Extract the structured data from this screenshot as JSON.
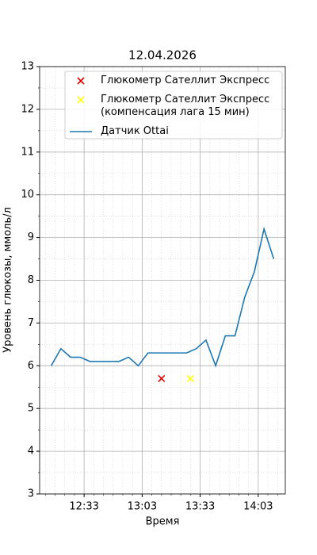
{
  "chart_data": {
    "type": "line",
    "title": "12.04.2026",
    "xlabel": "Время",
    "ylabel": "Уровень глюкозы, ммоль/л",
    "xlim": [
      "12:10",
      "14:17"
    ],
    "xticks": [
      "12:33",
      "13:03",
      "13:33",
      "14:03"
    ],
    "ylim": [
      3,
      13
    ],
    "yticks": [
      3,
      4,
      5,
      6,
      7,
      8,
      9,
      10,
      11,
      12,
      13
    ],
    "grid": true,
    "minor_grid": true,
    "legend": "upper right",
    "series": [
      {
        "name": "Глюкометр Сателлит Экспресс",
        "type": "scatter",
        "marker": "x",
        "color": "#e00000",
        "x": [
          "13:13"
        ],
        "values": [
          5.7
        ]
      },
      {
        "name": "Глюкометр Сателлит Экспресс\n(компенсация лага 15 мин)",
        "type": "scatter",
        "marker": "x",
        "color": "#ffff00",
        "x": [
          "13:28"
        ],
        "values": [
          5.7
        ]
      },
      {
        "name": "Датчик Ottai",
        "type": "line",
        "color": "#1f77b4",
        "x": [
          "12:16",
          "12:21",
          "12:26",
          "12:31",
          "12:36",
          "12:41",
          "12:46",
          "12:51",
          "12:56",
          "13:01",
          "13:06",
          "13:11",
          "13:16",
          "13:21",
          "13:26",
          "13:31",
          "13:36",
          "13:41",
          "13:46",
          "13:51",
          "13:56",
          "14:01",
          "14:06",
          "14:11"
        ],
        "values": [
          6.0,
          6.4,
          6.2,
          6.2,
          6.1,
          6.1,
          6.1,
          6.1,
          6.2,
          6.0,
          6.3,
          6.3,
          6.3,
          6.3,
          6.3,
          6.4,
          6.6,
          6.0,
          6.7,
          6.7,
          7.6,
          8.2,
          9.2,
          8.5
        ]
      }
    ]
  }
}
